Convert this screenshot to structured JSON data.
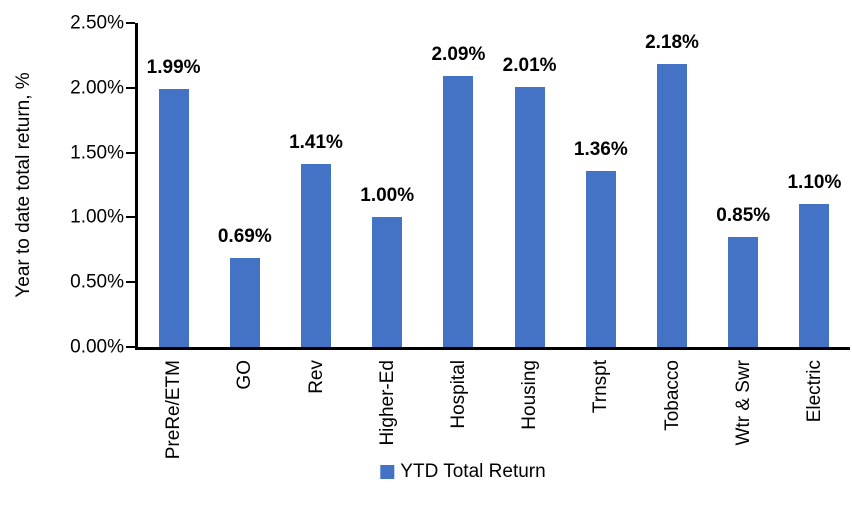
{
  "chart_data": {
    "type": "bar",
    "title": "",
    "xlabel": "",
    "ylabel": "Year to date total return, %",
    "categories": [
      "PreRe/ETM",
      "GO",
      "Rev",
      "Higher-Ed",
      "Hospital",
      "Housing",
      "Trnspt",
      "Tobacco",
      "Wtr & Swr",
      "Electric"
    ],
    "series": [
      {
        "name": "YTD Total Return",
        "values": [
          1.99,
          0.69,
          1.41,
          1.0,
          2.09,
          2.01,
          1.36,
          2.18,
          0.85,
          1.1
        ]
      }
    ],
    "value_labels": [
      "1.99%",
      "0.69%",
      "1.41%",
      "1.00%",
      "2.09%",
      "2.01%",
      "1.36%",
      "2.18%",
      "0.85%",
      "1.10%"
    ],
    "y_ticks": [
      "0.00%",
      "0.50%",
      "1.00%",
      "1.50%",
      "2.00%",
      "2.50%"
    ],
    "ylim": [
      0,
      2.5
    ],
    "grid": false,
    "legend_position": "bottom",
    "legend": [
      {
        "label": "YTD Total Return",
        "color": "#4472C4"
      }
    ],
    "bar_color": "#4472C4",
    "axis_color": "#000000",
    "text_color": "#000000"
  }
}
